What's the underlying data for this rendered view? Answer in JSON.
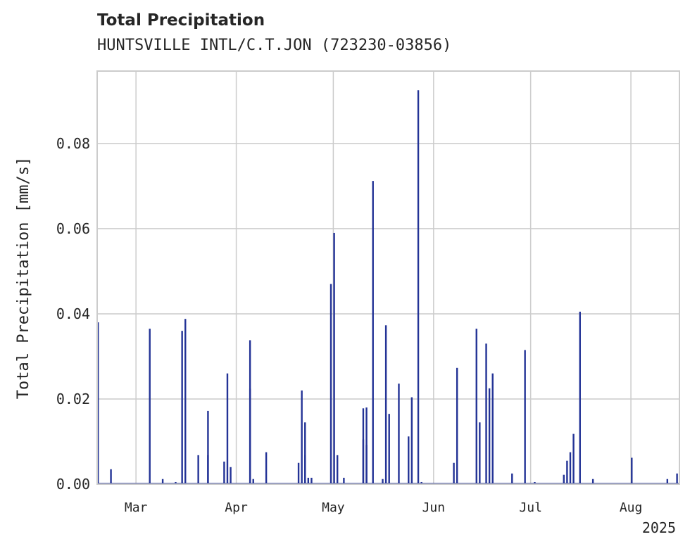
{
  "header": {
    "title": "Total Precipitation",
    "subtitle": "HUNTSVILLE INTL/C.T.JON (723230-03856)"
  },
  "colors": {
    "bar": "#233396",
    "grid": "#cccccc",
    "axis": "#cccccc",
    "text": "#262626"
  },
  "chart_data": {
    "type": "bar",
    "title": "Total Precipitation",
    "subtitle": "HUNTSVILLE INTL/C.T.JON (723230-03856)",
    "xlabel": "",
    "ylabel": "Total Precipitation [mm/s]",
    "ylim": [
      0,
      0.097
    ],
    "yticks": [
      0.0,
      0.02,
      0.04,
      0.06,
      0.08
    ],
    "ytick_labels": [
      "0.00",
      "0.02",
      "0.04",
      "0.06",
      "0.08"
    ],
    "xlim": [
      "2025-02-17",
      "2025-08-16"
    ],
    "xticks": [
      "2025-03-01",
      "2025-04-01",
      "2025-05-01",
      "2025-06-01",
      "2025-07-01",
      "2025-08-01"
    ],
    "xtick_labels": [
      "Mar",
      "Apr",
      "May",
      "Jun",
      "Jul",
      "Aug"
    ],
    "x_offset_label": "2025",
    "grid": true,
    "series": [
      {
        "x": [
          "2025-02-17",
          "2025-02-18",
          "2025-02-21",
          "2025-03-05",
          "2025-03-09",
          "2025-03-13",
          "2025-03-15",
          "2025-03-16",
          "2025-03-20",
          "2025-03-23",
          "2025-03-23",
          "2025-03-28",
          "2025-03-29",
          "2025-03-30",
          "2025-04-05",
          "2025-04-05",
          "2025-04-06",
          "2025-04-10",
          "2025-04-20",
          "2025-04-21",
          "2025-04-22",
          "2025-04-22",
          "2025-04-23",
          "2025-04-24",
          "2025-04-30",
          "2025-05-01",
          "2025-05-02",
          "2025-05-04",
          "2025-05-10",
          "2025-05-10",
          "2025-05-11",
          "2025-05-11",
          "2025-05-13",
          "2025-05-16",
          "2025-05-17",
          "2025-05-18",
          "2025-05-21",
          "2025-05-24",
          "2025-05-25",
          "2025-05-27",
          "2025-05-28",
          "2025-06-07",
          "2025-06-08",
          "2025-06-14",
          "2025-06-15",
          "2025-06-17",
          "2025-06-18",
          "2025-06-19",
          "2025-06-25",
          "2025-06-29",
          "2025-07-02",
          "2025-07-11",
          "2025-07-12",
          "2025-07-13",
          "2025-07-14",
          "2025-07-16",
          "2025-07-20",
          "2025-07-21",
          "2025-08-01",
          "2025-08-12",
          "2025-08-15"
        ],
        "values": [
          0.038,
          0.0,
          0.0035,
          0.0365,
          0.0012,
          0.0005,
          0.036,
          0.0388,
          0.0068,
          0.0172,
          0.0068,
          0.0053,
          0.026,
          0.004,
          0.0338,
          0.0224,
          0.0012,
          0.0075,
          0.005,
          0.022,
          0.0145,
          0.0068,
          0.0015,
          0.0015,
          0.047,
          0.059,
          0.0068,
          0.0015,
          0.0178,
          0.0105,
          0.018,
          0.0092,
          0.0712,
          0.0012,
          0.0373,
          0.0165,
          0.0236,
          0.0112,
          0.0204,
          0.0925,
          0.0005,
          0.005,
          0.0273,
          0.0365,
          0.0145,
          0.033,
          0.0225,
          0.026,
          0.0025,
          0.0315,
          0.0005,
          0.0022,
          0.0055,
          0.0075,
          0.0118,
          0.0405,
          0.0012,
          0.0,
          0.0062,
          0.0012,
          0.0025
        ]
      }
    ]
  }
}
